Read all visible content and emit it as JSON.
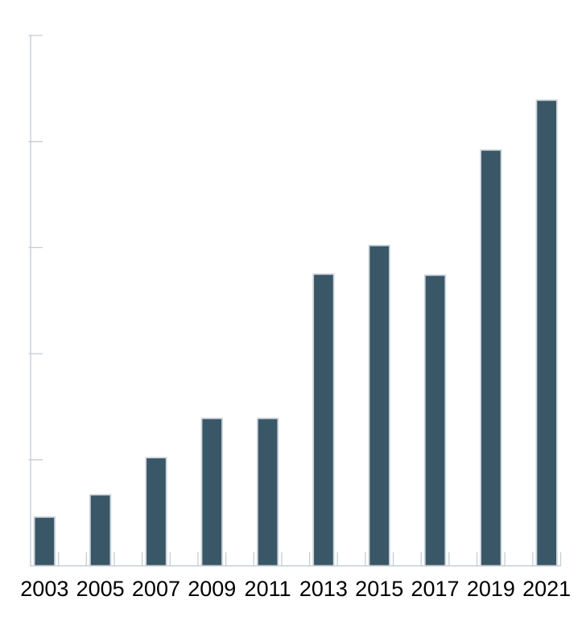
{
  "chart_data": {
    "type": "bar",
    "title": "",
    "xlabel": "",
    "ylabel": "",
    "categories": [
      "2003",
      "2005",
      "2007",
      "2009",
      "2011",
      "2013",
      "2015",
      "2017",
      "2019",
      "2021"
    ],
    "values": [
      46,
      67,
      102,
      139,
      139,
      275,
      302,
      274,
      392,
      439
    ],
    "x_axis_year_range": [
      2003,
      2021
    ],
    "x_tick_labels": [
      "2003",
      "2005",
      "2007",
      "2009",
      "2011",
      "2013",
      "2015",
      "2017",
      "2019",
      "2021"
    ],
    "y_ticks": [
      100,
      200,
      300,
      400,
      500
    ],
    "y_tick_labels_visible": false,
    "ylim": [
      0,
      500
    ],
    "grid": false,
    "legend_position": "none",
    "tick_direction": "in",
    "colors": {
      "bar_fill": "#3a5767",
      "bar_edge": "#ccd5dc",
      "axis": "#c4ced6",
      "label_text": "#000000",
      "background": "#ffffff"
    }
  }
}
